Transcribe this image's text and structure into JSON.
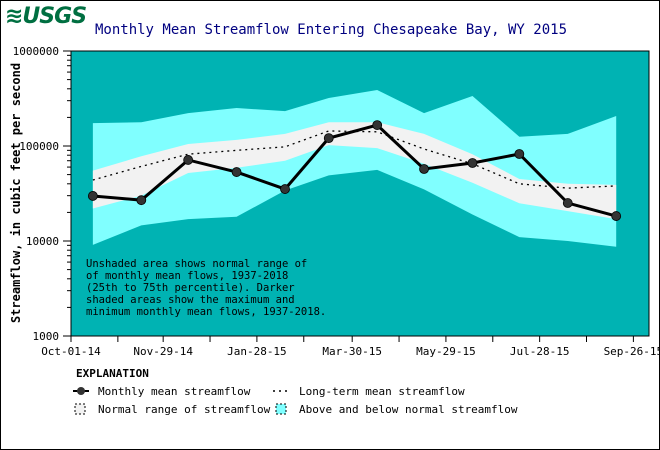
{
  "logo": "USGS",
  "chart_data": {
    "type": "line",
    "title": "Monthly Mean Streamflow Entering Chesapeake Bay, WY 2015",
    "ylabel": "Streamflow, in cubic feet per second",
    "xlabel": "",
    "y_scale": "log",
    "ylim": [
      1000,
      1000000
    ],
    "xlim": [
      "2014-10-01",
      "2015-10-06"
    ],
    "y_ticks": [
      "1000000",
      "100000",
      "10000",
      "1000"
    ],
    "x_tick_labels": [
      "Oct-01-14",
      "Nov-29-14",
      "Jan-28-15",
      "Mar-30-15",
      "May-29-15",
      "Jul-28-15",
      "Sep-26-15"
    ],
    "x_tick_dates": [
      "2014-10-01",
      "2014-10-31",
      "2014-11-29",
      "2014-12-29",
      "2015-01-28",
      "2015-02-27",
      "2015-03-30",
      "2015-04-29",
      "2015-05-29",
      "2015-06-28",
      "2015-07-28",
      "2015-08-27",
      "2015-09-26"
    ],
    "x": [
      "2014-10-15",
      "2014-11-15",
      "2014-12-15",
      "2015-01-15",
      "2015-02-15",
      "2015-03-15",
      "2015-04-15",
      "2015-05-15",
      "2015-06-15",
      "2015-07-15",
      "2015-08-15",
      "2015-09-15"
    ],
    "series": [
      {
        "name": "Monthly mean streamflow",
        "values": [
          29800,
          26900,
          71300,
          53200,
          35200,
          121000,
          166000,
          57300,
          66200,
          82400,
          25100,
          18300
        ]
      },
      {
        "name": "Long-term mean streamflow",
        "values": [
          43800,
          61000,
          82000,
          90000,
          98000,
          144000,
          141000,
          93000,
          65000,
          40000,
          36000,
          38000
        ]
      }
    ],
    "normal_range": {
      "upper_75th": [
        55000,
        78000,
        105000,
        116000,
        134000,
        178000,
        178000,
        134000,
        82000,
        45000,
        40000,
        39000
      ],
      "lower_25th": [
        22000,
        30000,
        52000,
        59000,
        70000,
        102000,
        95000,
        65000,
        41000,
        25000,
        20600,
        17000
      ]
    },
    "max_min_range": {
      "max": [
        174000,
        178000,
        222000,
        251000,
        233000,
        320000,
        389000,
        222000,
        336000,
        125000,
        134000,
        207000
      ],
      "min": [
        9100,
        14600,
        17000,
        18000,
        34000,
        49000,
        56000,
        35000,
        19000,
        11000,
        10000,
        8700
      ]
    },
    "annotation": [
      "Unshaded area shows normal range of",
      "of monthly mean flows, 1937-2018",
      "(25th to 75th percentile).  Darker",
      "shaded areas show the maximum and",
      "minimum monthly mean flows, 1937-2018."
    ],
    "legend": {
      "title": "EXPLANATION",
      "items": [
        "Monthly mean streamflow",
        "Long-term mean streamflow",
        "Normal range of streamflow",
        "Above and below normal streamflow"
      ]
    },
    "colors": {
      "background": "#00b3b3",
      "above_below": "#80ffff",
      "normal": "#f2f2f2",
      "title": "#000080",
      "line": "#000000",
      "marker": "#333333"
    }
  }
}
